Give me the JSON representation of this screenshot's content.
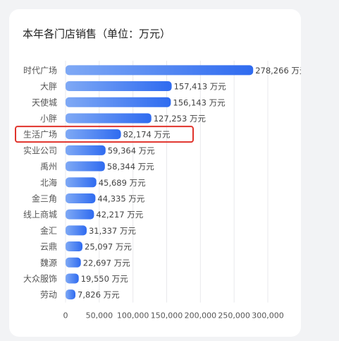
{
  "chart_data": {
    "type": "bar",
    "orientation": "horizontal",
    "title": "本年各门店销售（单位：万元）",
    "categories": [
      "时代广场",
      "大胖",
      "天使城",
      "小胖",
      "生活广场",
      "实业公司",
      "禹州",
      "北海",
      "金三角",
      "线上商城",
      "金汇",
      "云鼎",
      "魏源",
      "大众服饰",
      "劳动"
    ],
    "values": [
      278266,
      157413,
      156143,
      127253,
      82174,
      59364,
      58344,
      45689,
      44335,
      42217,
      31337,
      25097,
      22697,
      19550,
      7826
    ],
    "value_labels": [
      "278,266 万元",
      "157,413 万元",
      "156,143 万元",
      "127,253 万元",
      "82,174 万元",
      "59,364 万元",
      "58,344 万元",
      "45,689 万元",
      "44,335 万元",
      "42,217 万元",
      "31,337 万元",
      "25,097 万元",
      "22,697 万元",
      "19,550 万元",
      "7,826 万元"
    ],
    "x_ticks": [
      "0",
      "50,000",
      "100,000",
      "150,000",
      "200,000",
      "250,000",
      "300,000"
    ],
    "xlim": [
      0,
      300000
    ],
    "highlighted_category": "生活广场",
    "grid": true,
    "colors": {
      "bar_start": "#7fa9f5",
      "bar_end": "#2f6bf0",
      "highlight_box": "#e0332b"
    }
  }
}
